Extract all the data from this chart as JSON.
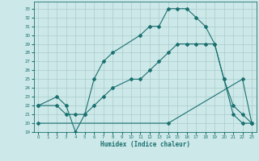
{
  "xlabel": "Humidex (Indice chaleur)",
  "xlim": [
    -0.5,
    23.5
  ],
  "ylim": [
    19,
    33.8
  ],
  "xticks": [
    0,
    1,
    2,
    3,
    4,
    5,
    6,
    7,
    8,
    9,
    10,
    11,
    12,
    13,
    14,
    15,
    16,
    17,
    18,
    19,
    20,
    21,
    22,
    23
  ],
  "yticks": [
    19,
    20,
    21,
    22,
    23,
    24,
    25,
    26,
    27,
    28,
    29,
    30,
    31,
    32,
    33
  ],
  "bg_color": "#cde8e8",
  "grid_color": "#aacccc",
  "line_color": "#1a7070",
  "line1_x": [
    0,
    2,
    3,
    4,
    5,
    6,
    7,
    8,
    11,
    12,
    13,
    14,
    15,
    16,
    17,
    18,
    19,
    20,
    21,
    22,
    23
  ],
  "line1_y": [
    22,
    23,
    22,
    19,
    21,
    25,
    27,
    28,
    30,
    31,
    31,
    33,
    33,
    33,
    32,
    31,
    29,
    25,
    21,
    20,
    20
  ],
  "line2_x": [
    0,
    2,
    3,
    4,
    5,
    6,
    7,
    8,
    10,
    11,
    12,
    13,
    14,
    15,
    16,
    17,
    18,
    19,
    20,
    21,
    22,
    23
  ],
  "line2_y": [
    22,
    22,
    21,
    21,
    21,
    22,
    23,
    24,
    25,
    25,
    26,
    27,
    28,
    29,
    29,
    29,
    29,
    29,
    25,
    22,
    21,
    20
  ],
  "line3_x": [
    0,
    14,
    22,
    23
  ],
  "line3_y": [
    20,
    20,
    25,
    20
  ]
}
